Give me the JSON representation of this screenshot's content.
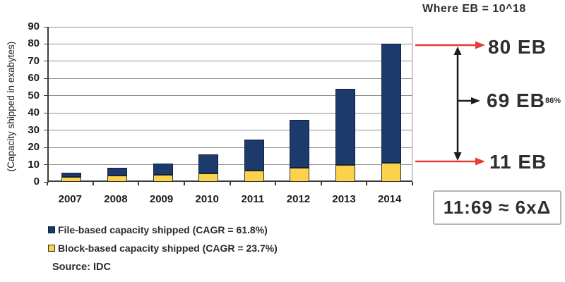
{
  "chart_data": {
    "type": "bar",
    "stacked": true,
    "categories": [
      "2007",
      "2008",
      "2009",
      "2010",
      "2011",
      "2012",
      "2013",
      "2014"
    ],
    "series": [
      {
        "name": "Block-based capacity shipped (CAGR = 23.7%)",
        "color": "#fbd24b",
        "border": "#2e2e2e",
        "values": [
          3,
          3.5,
          4,
          5,
          6.5,
          8,
          10,
          11
        ]
      },
      {
        "name": "File-based capacity shipped (CAGR = 61.8%)",
        "color": "#1d3a6c",
        "border": "#0e1e3c",
        "values": [
          2.5,
          4.5,
          6.5,
          11,
          18,
          28,
          44,
          69
        ]
      }
    ],
    "totals": [
      5.5,
      8,
      10.5,
      16,
      24.5,
      36,
      54,
      80
    ],
    "title": "",
    "xlabel": "",
    "ylabel": "(Capacity shipped in exabytes)",
    "ylim": [
      0,
      90
    ],
    "yticks": [
      0,
      10,
      20,
      30,
      40,
      50,
      60,
      70,
      80,
      90
    ],
    "grid": true,
    "legend_position": "bottom-left"
  },
  "legend": {
    "items": [
      {
        "label": "File-based capacity shipped (CAGR = 61.8%)",
        "color": "#1d3a6c",
        "border": "#0e1e3c"
      },
      {
        "label": "Block-based capacity shipped (CAGR = 23.7%)",
        "color": "#fbd24b",
        "border": "#2e2e2e"
      }
    ]
  },
  "source": "Source: IDC",
  "annotations": {
    "where_note": "Where EB = 10^18",
    "top_value": "80 EB",
    "mid_value": "69 EB",
    "mid_percent": "86%",
    "bottom_value": "11 EB",
    "ratio_box": "11:69 ≈ 6xΔ"
  },
  "colors": {
    "file_bar": "#1d3a6c",
    "block_bar": "#fbd24b",
    "red_arrow": "#e73c36",
    "black_arrow": "#1c1c1c",
    "gridline": "#8f8f8f",
    "axis": "#3c3c3c"
  }
}
